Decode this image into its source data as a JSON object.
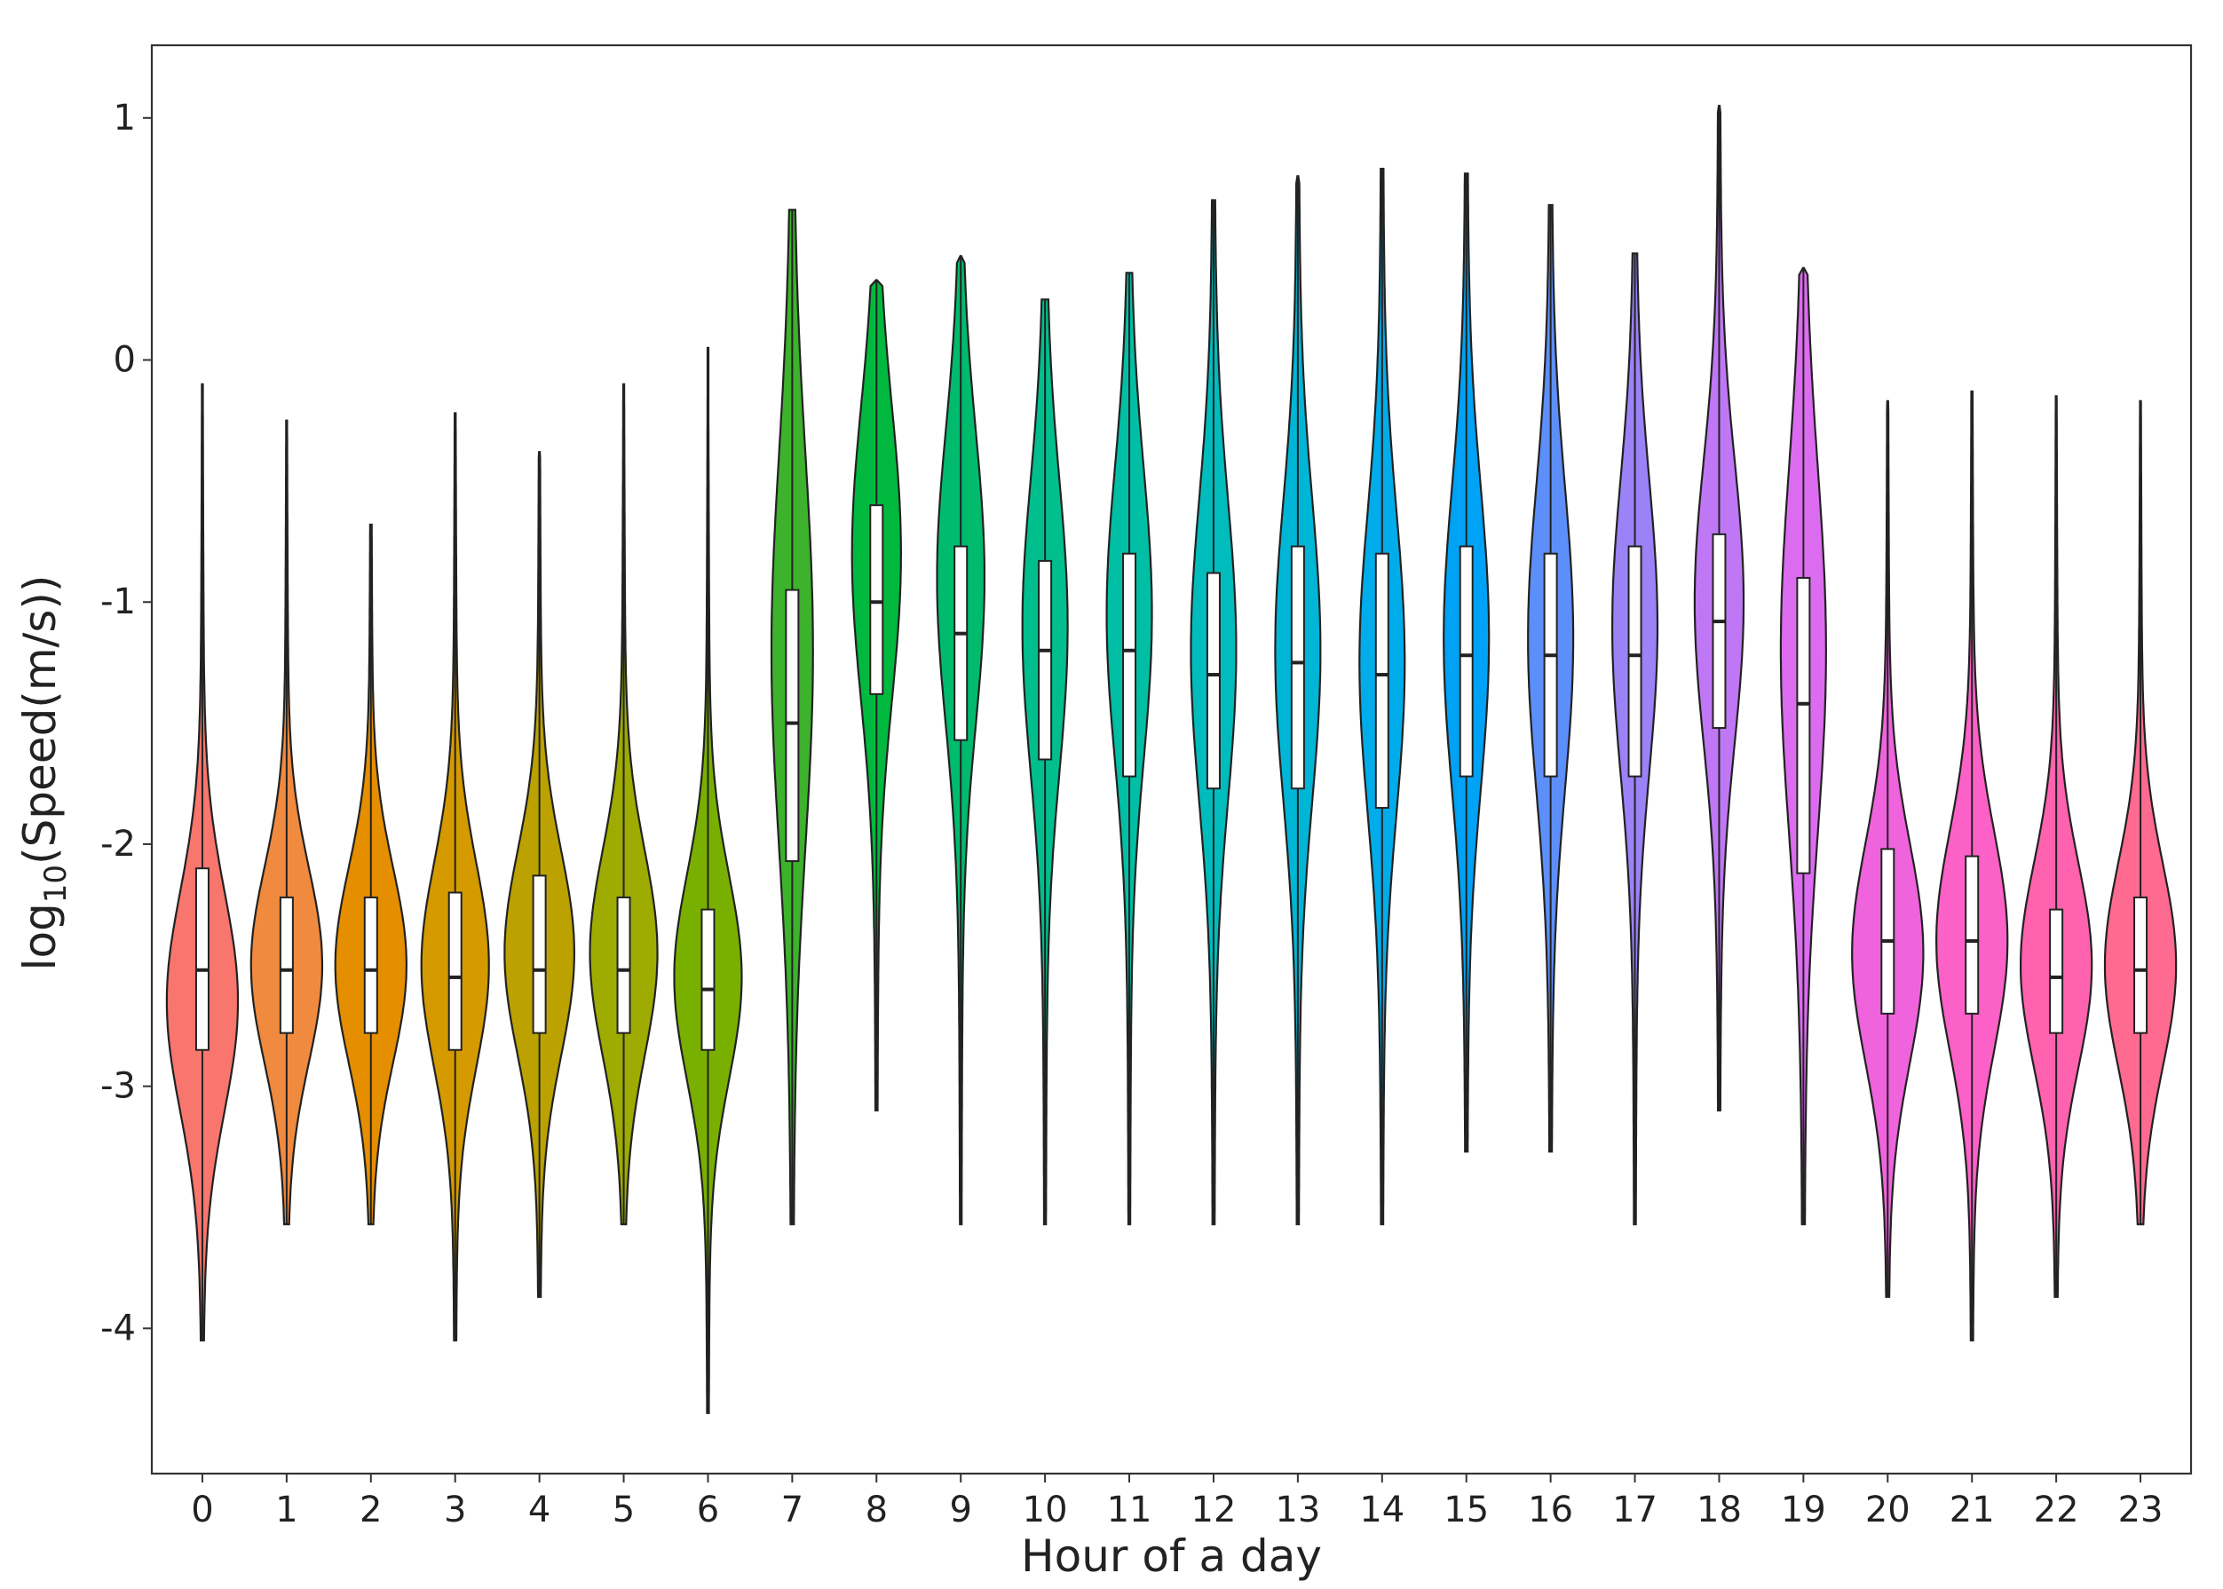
{
  "chart_data": {
    "type": "violin",
    "title": "",
    "xlabel": "Hour of a day",
    "ylabel": {
      "prefix": "log",
      "subscript": "10",
      "suffix": "(Speed(m/s))"
    },
    "xlim": [
      -0.6,
      23.6
    ],
    "ylim": [
      -4.6,
      1.3
    ],
    "yticks": [
      1,
      0,
      -1,
      -2,
      -3,
      -4
    ],
    "grid": false,
    "legend": "none",
    "categories": [
      "0",
      "1",
      "2",
      "3",
      "4",
      "5",
      "6",
      "7",
      "8",
      "9",
      "10",
      "11",
      "12",
      "13",
      "14",
      "15",
      "16",
      "17",
      "18",
      "19",
      "20",
      "21",
      "22",
      "23"
    ],
    "series": [
      {
        "category": "0",
        "color": "#f8766d",
        "min": -4.05,
        "q1": -2.85,
        "median": -2.52,
        "q3": -2.1,
        "max": -0.1,
        "whisker_low": -3.75,
        "whisker_high": -1.05,
        "peak": -2.65,
        "peak_halfwidth": 0.9,
        "spread": 0.45
      },
      {
        "category": "1",
        "color": "#f08a3e",
        "min": -3.57,
        "q1": -2.78,
        "median": -2.52,
        "q3": -2.22,
        "max": -0.25,
        "whisker_low": -3.57,
        "whisker_high": -1.45,
        "peak": -2.5,
        "peak_halfwidth": 0.9,
        "spread": 0.4
      },
      {
        "category": "2",
        "color": "#e58e00",
        "min": -3.57,
        "q1": -2.78,
        "median": -2.52,
        "q3": -2.22,
        "max": -0.68,
        "whisker_low": -3.57,
        "whisker_high": -1.4,
        "peak": -2.5,
        "peak_halfwidth": 0.9,
        "spread": 0.4
      },
      {
        "category": "3",
        "color": "#d49a00",
        "min": -4.05,
        "q1": -2.85,
        "median": -2.55,
        "q3": -2.2,
        "max": -0.22,
        "whisker_low": -3.8,
        "whisker_high": -1.2,
        "peak": -2.5,
        "peak_halfwidth": 0.85,
        "spread": 0.42
      },
      {
        "category": "4",
        "color": "#bba200",
        "min": -3.87,
        "q1": -2.78,
        "median": -2.52,
        "q3": -2.13,
        "max": -0.38,
        "whisker_low": -3.6,
        "whisker_high": -1.2,
        "peak": -2.45,
        "peak_halfwidth": 0.88,
        "spread": 0.42
      },
      {
        "category": "5",
        "color": "#9eab00",
        "min": -3.57,
        "q1": -2.78,
        "median": -2.52,
        "q3": -2.22,
        "max": -0.1,
        "whisker_low": -3.57,
        "whisker_high": -1.45,
        "peak": -2.45,
        "peak_halfwidth": 0.85,
        "spread": 0.42
      },
      {
        "category": "6",
        "color": "#79b000",
        "min": -4.35,
        "q1": -2.85,
        "median": -2.6,
        "q3": -2.27,
        "max": 0.05,
        "whisker_low": -3.65,
        "whisker_high": -1.45,
        "peak": -2.55,
        "peak_halfwidth": 0.85,
        "spread": 0.42
      },
      {
        "category": "7",
        "color": "#3db22c",
        "min": -3.57,
        "q1": -2.07,
        "median": -1.5,
        "q3": -0.95,
        "max": 0.62,
        "whisker_low": -3.0,
        "whisker_high": 0.15,
        "peak": -1.2,
        "peak_halfwidth": 0.5,
        "spread": 0.8
      },
      {
        "category": "8",
        "color": "#00b93e",
        "min": -3.1,
        "q1": -1.38,
        "median": -1.0,
        "q3": -0.6,
        "max": 0.33,
        "whisker_low": -2.3,
        "whisker_high": 0.3,
        "peak": -0.8,
        "peak_halfwidth": 0.6,
        "spread": 0.6
      },
      {
        "category": "9",
        "color": "#00bb6e",
        "min": -3.57,
        "q1": -1.57,
        "median": -1.13,
        "q3": -0.77,
        "max": 0.43,
        "whisker_low": -2.6,
        "whisker_high": 0.15,
        "peak": -0.9,
        "peak_halfwidth": 0.58,
        "spread": 0.6
      },
      {
        "category": "10",
        "color": "#00bf8d",
        "min": -3.57,
        "q1": -1.65,
        "median": -1.2,
        "q3": -0.83,
        "max": 0.25,
        "whisker_low": -2.7,
        "whisker_high": 0.1,
        "peak": -1.1,
        "peak_halfwidth": 0.55,
        "spread": 0.6
      },
      {
        "category": "11",
        "color": "#00bfa4",
        "min": -3.57,
        "q1": -1.72,
        "median": -1.2,
        "q3": -0.8,
        "max": 0.36,
        "whisker_low": -2.7,
        "whisker_high": 0.1,
        "peak": -1.05,
        "peak_halfwidth": 0.55,
        "spread": 0.6
      },
      {
        "category": "12",
        "color": "#00bcbd",
        "min": -3.57,
        "q1": -1.77,
        "median": -1.3,
        "q3": -0.88,
        "max": 0.66,
        "whisker_low": -2.8,
        "whisker_high": 0.2,
        "peak": -1.2,
        "peak_halfwidth": 0.55,
        "spread": 0.62
      },
      {
        "category": "13",
        "color": "#00b6d6",
        "min": -3.57,
        "q1": -1.77,
        "median": -1.25,
        "q3": -0.77,
        "max": 0.76,
        "whisker_low": -2.8,
        "whisker_high": 0.3,
        "peak": -1.2,
        "peak_halfwidth": 0.55,
        "spread": 0.62
      },
      {
        "category": "14",
        "color": "#00adea",
        "min": -3.57,
        "q1": -1.85,
        "median": -1.3,
        "q3": -0.8,
        "max": 0.79,
        "whisker_low": -2.9,
        "whisker_high": 0.35,
        "peak": -1.25,
        "peak_halfwidth": 0.55,
        "spread": 0.62
      },
      {
        "category": "15",
        "color": "#00a2f5",
        "min": -3.27,
        "q1": -1.72,
        "median": -1.22,
        "q3": -0.77,
        "max": 0.77,
        "whisker_low": -2.9,
        "whisker_high": 0.3,
        "peak": -1.15,
        "peak_halfwidth": 0.55,
        "spread": 0.62
      },
      {
        "category": "16",
        "color": "#5d8ffb",
        "min": -3.27,
        "q1": -1.72,
        "median": -1.22,
        "q3": -0.8,
        "max": 0.64,
        "whisker_low": -2.8,
        "whisker_high": 0.2,
        "peak": -1.15,
        "peak_halfwidth": 0.55,
        "spread": 0.62
      },
      {
        "category": "17",
        "color": "#9b82f7",
        "min": -3.57,
        "q1": -1.72,
        "median": -1.22,
        "q3": -0.77,
        "max": 0.44,
        "whisker_low": -2.8,
        "whisker_high": 0.25,
        "peak": -1.1,
        "peak_halfwidth": 0.55,
        "spread": 0.6
      },
      {
        "category": "18",
        "color": "#c077f5",
        "min": -3.1,
        "q1": -1.52,
        "median": -1.08,
        "q3": -0.72,
        "max": 1.05,
        "whisker_low": -2.5,
        "whisker_high": 0.2,
        "peak": -1.0,
        "peak_halfwidth": 0.6,
        "spread": 0.58
      },
      {
        "category": "19",
        "color": "#dc6cef",
        "min": -3.57,
        "q1": -2.12,
        "median": -1.42,
        "q3": -0.9,
        "max": 0.38,
        "whisker_low": -3.2,
        "whisker_high": 0.0,
        "peak": -1.2,
        "peak_halfwidth": 0.55,
        "spread": 0.75
      },
      {
        "category": "20",
        "color": "#ef63dd",
        "min": -3.87,
        "q1": -2.7,
        "median": -2.4,
        "q3": -2.02,
        "max": -0.17,
        "whisker_low": -3.4,
        "whisker_high": -1.0,
        "peak": -2.45,
        "peak_halfwidth": 0.9,
        "spread": 0.45
      },
      {
        "category": "21",
        "color": "#fb61c7",
        "min": -4.05,
        "q1": -2.7,
        "median": -2.4,
        "q3": -2.05,
        "max": -0.13,
        "whisker_low": -3.6,
        "whisker_high": -1.1,
        "peak": -2.4,
        "peak_halfwidth": 0.9,
        "spread": 0.45
      },
      {
        "category": "22",
        "color": "#ff62ae",
        "min": -3.87,
        "q1": -2.78,
        "median": -2.55,
        "q3": -2.27,
        "max": -0.15,
        "whisker_low": -3.7,
        "whisker_high": -1.55,
        "peak": -2.5,
        "peak_halfwidth": 0.9,
        "spread": 0.42
      },
      {
        "category": "23",
        "color": "#ff6a90",
        "min": -3.57,
        "q1": -2.78,
        "median": -2.52,
        "q3": -2.22,
        "max": -0.17,
        "whisker_low": -3.57,
        "whisker_high": -1.5,
        "peak": -2.5,
        "peak_halfwidth": 0.9,
        "spread": 0.42
      }
    ]
  }
}
